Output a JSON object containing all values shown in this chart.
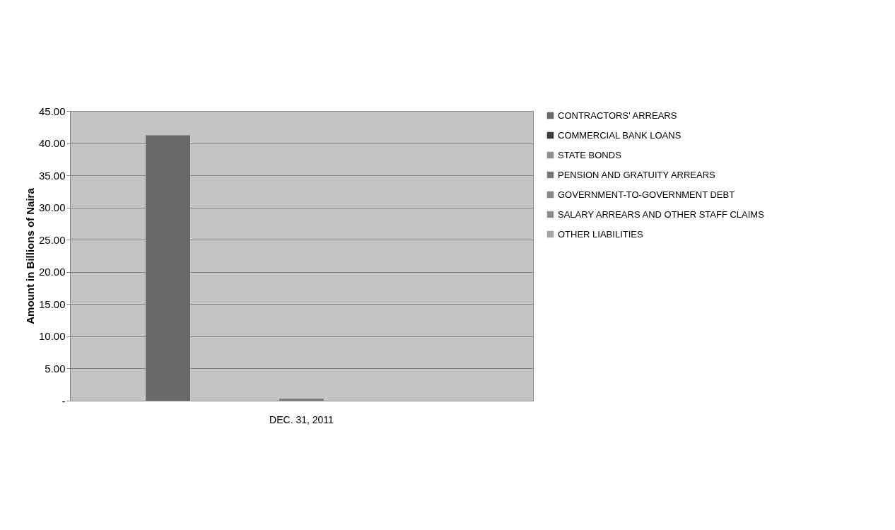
{
  "chart_data": {
    "type": "bar",
    "ylabel": "Amount in Billions of Naira",
    "categories": [
      "DEC. 31, 2011"
    ],
    "series": [
      {
        "name": "CONTRACTORS' ARREARS",
        "color": "#6a6a6a",
        "values": [
          41.2
        ]
      },
      {
        "name": "COMMERCIAL BANK LOANS",
        "color": "#3c3c3c",
        "values": [
          0
        ]
      },
      {
        "name": "STATE BONDS",
        "color": "#8e8e8e",
        "values": [
          0
        ]
      },
      {
        "name": "PENSION AND GRATUITY ARREARS",
        "color": "#7a7a7a",
        "values": [
          0.3
        ]
      },
      {
        "name": "GOVERNMENT-TO-GOVERNMENT DEBT",
        "color": "#888888",
        "values": [
          0
        ]
      },
      {
        "name": "SALARY ARREARS AND OTHER STAFF CLAIMS",
        "color": "#8c8c8c",
        "values": [
          0
        ]
      },
      {
        "name": "OTHER LIABILITIES",
        "color": "#a4a4a4",
        "values": [
          0
        ]
      }
    ],
    "ylim": [
      0,
      45
    ],
    "yticks": [
      {
        "value": 0,
        "label": "-"
      },
      {
        "value": 5,
        "label": "5.00"
      },
      {
        "value": 10,
        "label": "10.00"
      },
      {
        "value": 15,
        "label": "15.00"
      },
      {
        "value": 20,
        "label": "20.00"
      },
      {
        "value": 25,
        "label": "25.00"
      },
      {
        "value": 30,
        "label": "30.00"
      },
      {
        "value": 35,
        "label": "35.00"
      },
      {
        "value": 40,
        "label": "40.00"
      },
      {
        "value": 45,
        "label": "45.00"
      }
    ],
    "grid": "y",
    "legend": "right"
  }
}
